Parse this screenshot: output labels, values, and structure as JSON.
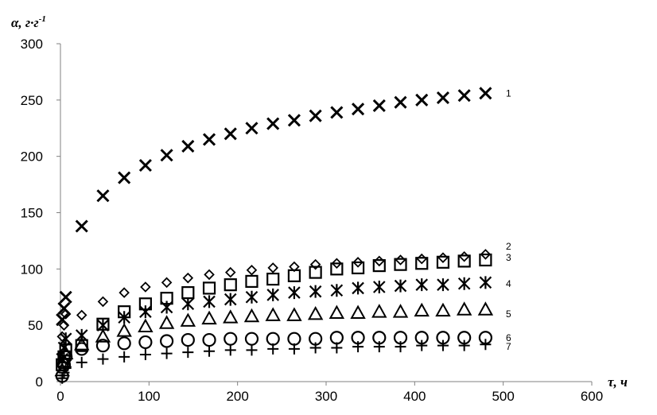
{
  "chart_data": {
    "type": "scatter",
    "xlabel": "τ, ч",
    "ylabel": "α, г·г",
    "ylabel_sup": "-1",
    "xlim": [
      0,
      600
    ],
    "ylim": [
      0,
      300
    ],
    "x_ticks": [
      0,
      100,
      200,
      300,
      400,
      500,
      600
    ],
    "y_ticks": [
      0,
      50,
      100,
      150,
      200,
      250,
      300
    ],
    "x_tick_labels": [
      "0",
      "100",
      "200",
      "300",
      "400",
      "500",
      "600"
    ],
    "y_tick_labels": [
      "0",
      "50",
      "100",
      "150",
      "200",
      "250",
      "300"
    ],
    "grid": false,
    "legend": "labels at right end of each series",
    "series": [
      {
        "label": "1",
        "marker": "x",
        "x": [
          2,
          4,
          6,
          24,
          48,
          72,
          96,
          120,
          144,
          168,
          192,
          216,
          240,
          264,
          288,
          312,
          336,
          360,
          384,
          408,
          432,
          456,
          480
        ],
        "y": [
          55,
          65,
          75,
          138,
          165,
          181,
          192,
          201,
          209,
          215,
          220,
          225,
          229,
          232,
          236,
          239,
          242,
          245,
          248,
          250,
          252,
          254,
          256
        ]
      },
      {
        "label": "2",
        "marker": "diamond",
        "x": [
          2,
          4,
          6,
          24,
          48,
          72,
          96,
          120,
          144,
          168,
          192,
          216,
          240,
          264,
          288,
          312,
          336,
          360,
          384,
          408,
          432,
          456,
          480
        ],
        "y": [
          40,
          50,
          60,
          59,
          71,
          79,
          84,
          88,
          92,
          95,
          97,
          99,
          101,
          102,
          104,
          105,
          106,
          107,
          108,
          109,
          110,
          111,
          113
        ]
      },
      {
        "label": "3",
        "marker": "square",
        "x": [
          2,
          4,
          6,
          24,
          48,
          72,
          96,
          120,
          144,
          168,
          192,
          216,
          240,
          264,
          288,
          312,
          336,
          360,
          384,
          408,
          432,
          456,
          480
        ],
        "y": [
          15,
          22,
          28,
          32,
          51,
          62,
          69,
          74,
          79,
          83,
          86,
          89,
          91,
          94,
          97,
          100,
          101,
          103,
          104,
          105,
          106,
          107,
          108
        ]
      },
      {
        "label": "4",
        "marker": "asterisk",
        "x": [
          2,
          4,
          6,
          24,
          48,
          72,
          96,
          120,
          144,
          168,
          192,
          216,
          240,
          264,
          288,
          312,
          336,
          360,
          384,
          408,
          432,
          456,
          480
        ],
        "y": [
          20,
          30,
          38,
          41,
          50,
          57,
          62,
          66,
          69,
          71,
          73,
          75,
          77,
          79,
          80,
          81,
          83,
          84,
          85,
          86,
          86,
          87,
          88
        ]
      },
      {
        "label": "5",
        "marker": "triangle",
        "x": [
          2,
          4,
          6,
          24,
          48,
          72,
          96,
          120,
          144,
          168,
          192,
          216,
          240,
          264,
          288,
          312,
          336,
          360,
          384,
          408,
          432,
          456,
          480
        ],
        "y": [
          10,
          18,
          25,
          33,
          40,
          45,
          49,
          52,
          54,
          56,
          57,
          58,
          59,
          59,
          60,
          61,
          61,
          62,
          62,
          63,
          63,
          64,
          64
        ]
      },
      {
        "label": "6",
        "marker": "circle",
        "x": [
          2,
          4,
          6,
          24,
          48,
          72,
          96,
          120,
          144,
          168,
          192,
          216,
          240,
          264,
          288,
          312,
          336,
          360,
          384,
          408,
          432,
          456,
          480
        ],
        "y": [
          5,
          15,
          22,
          29,
          32,
          34,
          35,
          36,
          37,
          37,
          38,
          38,
          38,
          38,
          38,
          39,
          39,
          39,
          39,
          39,
          39,
          39,
          39
        ]
      },
      {
        "label": "7",
        "marker": "plus",
        "x": [
          2,
          4,
          6,
          24,
          48,
          72,
          96,
          120,
          144,
          168,
          192,
          216,
          240,
          264,
          288,
          312,
          336,
          360,
          384,
          408,
          432,
          456,
          480
        ],
        "y": [
          3,
          8,
          12,
          17,
          20,
          22,
          24,
          25,
          26,
          27,
          28,
          28,
          29,
          29,
          30,
          30,
          31,
          31,
          31,
          32,
          32,
          32,
          33
        ]
      }
    ]
  }
}
